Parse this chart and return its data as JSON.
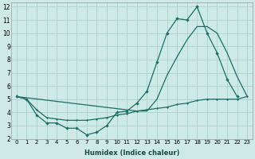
{
  "background_color": "#ceeae7",
  "grid_color": "#b0d4d0",
  "line_color": "#1a6e62",
  "xlabel": "Humidex (Indice chaleur)",
  "xlim": [
    -0.5,
    23.5
  ],
  "ylim": [
    2,
    12.3
  ],
  "xticks": [
    0,
    1,
    2,
    3,
    4,
    5,
    6,
    7,
    8,
    9,
    10,
    11,
    12,
    13,
    14,
    15,
    16,
    17,
    18,
    19,
    20,
    21,
    22,
    23
  ],
  "yticks": [
    2,
    3,
    4,
    5,
    6,
    7,
    8,
    9,
    10,
    11,
    12
  ],
  "line1_x": [
    0,
    1,
    2,
    3,
    4,
    5,
    6,
    7,
    8,
    9,
    10,
    11,
    12,
    13,
    14,
    15,
    16,
    17,
    18,
    19,
    20,
    21,
    22
  ],
  "line1_y": [
    5.2,
    5.0,
    3.8,
    3.2,
    3.2,
    2.8,
    2.8,
    2.3,
    2.5,
    3.0,
    4.0,
    4.1,
    4.7,
    5.6,
    7.8,
    10.0,
    11.1,
    11.0,
    12.0,
    10.0,
    8.5,
    6.5,
    5.2
  ],
  "line2_x": [
    0,
    12,
    13,
    14,
    15,
    16,
    17,
    18,
    19,
    20,
    21,
    22,
    23
  ],
  "line2_y": [
    5.2,
    4.1,
    4.1,
    5.0,
    6.8,
    8.2,
    9.5,
    10.5,
    10.5,
    10.0,
    8.5,
    6.7,
    5.2
  ],
  "line3_x": [
    0,
    1,
    2,
    3,
    4,
    5,
    6,
    7,
    8,
    9,
    10,
    11,
    12,
    13,
    14,
    15,
    16,
    17,
    18,
    19,
    20,
    21,
    22,
    23
  ],
  "line3_y": [
    5.2,
    5.0,
    4.2,
    3.6,
    3.5,
    3.4,
    3.4,
    3.4,
    3.5,
    3.6,
    3.8,
    3.9,
    4.1,
    4.2,
    4.3,
    4.4,
    4.6,
    4.7,
    4.9,
    5.0,
    5.0,
    5.0,
    5.0,
    5.2
  ]
}
